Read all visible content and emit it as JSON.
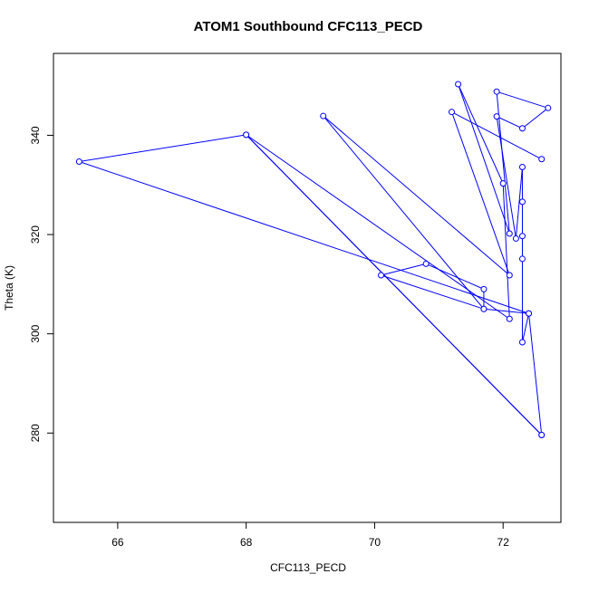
{
  "chart_data": {
    "type": "line",
    "title": "ATOM1 Southbound CFC113_PECD",
    "xlabel": "CFC113_PECD",
    "ylabel": "Theta (K)",
    "xlim": [
      65.0,
      72.9
    ],
    "ylim": [
      262.0,
      356.5
    ],
    "x_ticks": [
      66,
      68,
      70,
      72
    ],
    "y_ticks": [
      280,
      300,
      320,
      340
    ],
    "grid": false,
    "legend": "none",
    "series": [
      {
        "line_color": "#0000ff",
        "marker": "open-circle",
        "points": [
          [
            72.6,
            279.6
          ],
          [
            72.4,
            304.1
          ],
          [
            72.3,
            298.3
          ],
          [
            72.3,
            315.1
          ],
          [
            72.3,
            319.7
          ],
          [
            72.3,
            326.6
          ],
          [
            72.3,
            333.6
          ],
          [
            72.2,
            319.2
          ],
          [
            71.9,
            343.8
          ],
          [
            72.3,
            341.4
          ],
          [
            72.7,
            345.5
          ],
          [
            71.9,
            348.8
          ],
          [
            72.1,
            320.2
          ],
          [
            71.3,
            350.3
          ],
          [
            72.0,
            330.3
          ],
          [
            72.1,
            303.0
          ],
          [
            68.0,
            340.1
          ],
          [
            72.6,
            279.6
          ],
          [
            68.0,
            340.1
          ],
          [
            65.4,
            334.7
          ],
          [
            72.4,
            304.1
          ],
          [
            71.7,
            305.0
          ],
          [
            70.1,
            311.8
          ],
          [
            70.8,
            314.1
          ],
          [
            71.7,
            309.0
          ],
          [
            71.7,
            305.0
          ],
          [
            69.2,
            343.9
          ],
          [
            72.1,
            311.8
          ],
          [
            71.2,
            344.7
          ],
          [
            72.6,
            335.2
          ]
        ]
      }
    ]
  }
}
